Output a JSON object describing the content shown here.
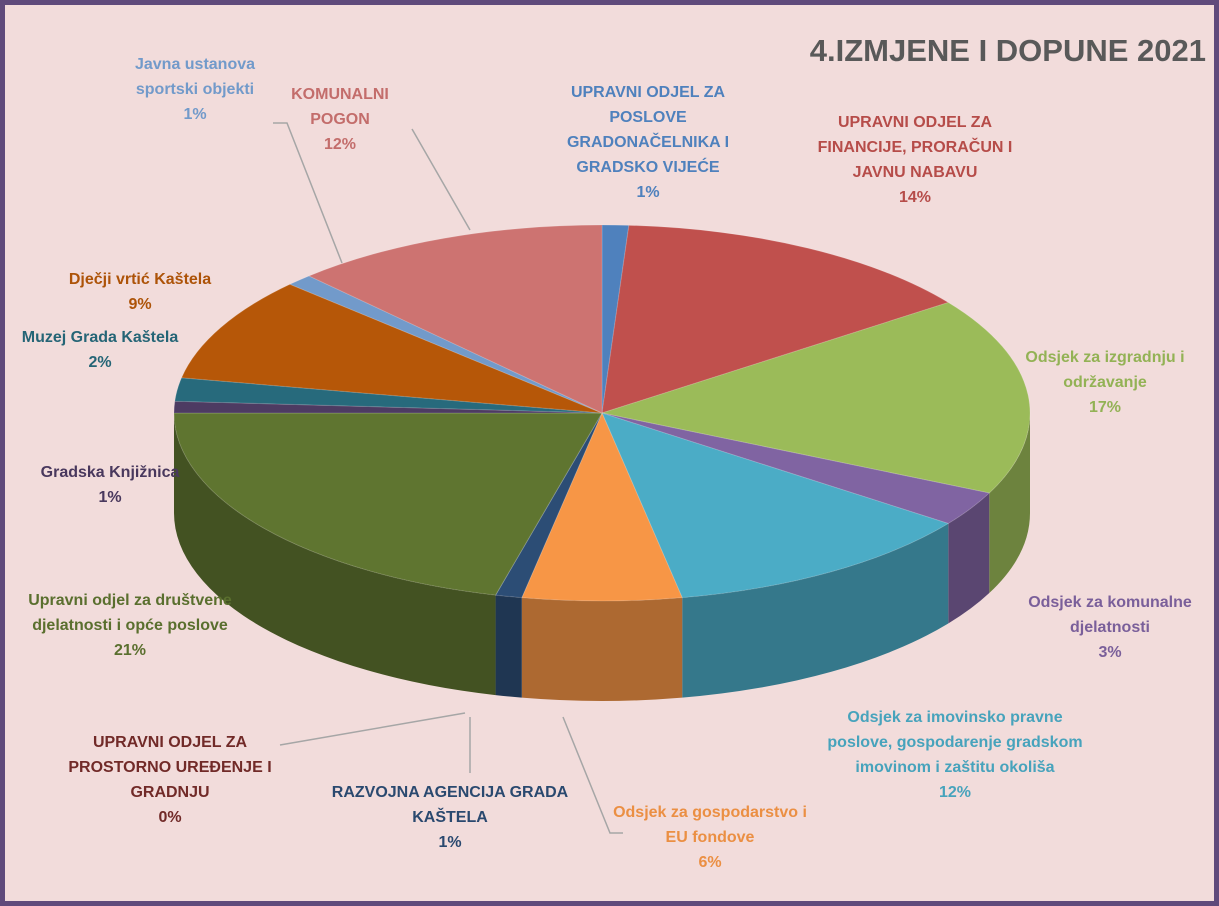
{
  "chart_data": {
    "type": "pie",
    "title": "4.IZMJENE I DOPUNE 2021",
    "categories": [
      "UPRAVNI ODJEL ZA POSLOVE GRADONAČELNIKA I GRADSKO VIJEĆE",
      "UPRAVNI ODJEL ZA FINANCIJE, PRORAČUN I JAVNU NABAVU",
      "Odsjek za izgradnju i održavanje",
      "Odsjek za komunalne djelatnosti",
      "Odsjek za imovinsko pravne poslove, gospodarenje gradskom imovinom i zaštitu okoliša",
      "Odsjek za gospodarstvo i EU fondove",
      "RAZVOJNA AGENCIJA GRADA KAŠTELA",
      "UPRAVNI ODJEL ZA PROSTORNO UREĐENJE I GRADNJU",
      "Upravni odjel za društvene djelatnosti i opće poslove",
      "Gradska Knjižnica",
      "Muzej Grada Kaštela",
      "Dječji vrtić Kaštela",
      "Javna ustanova sportski objekti",
      "KOMUNALNI POGON"
    ],
    "values": [
      1,
      14,
      17,
      3,
      12,
      6,
      1,
      0,
      21,
      1,
      2,
      9,
      1,
      12
    ],
    "value_labels": [
      "1%",
      "14%",
      "17%",
      "3%",
      "12%",
      "6%",
      "1%",
      "0%",
      "21%",
      "1%",
      "2%",
      "9%",
      "1%",
      "12%"
    ],
    "colors": [
      "#4f81bd",
      "#c0504d",
      "#9bbb59",
      "#8064a2",
      "#4bacc6",
      "#f79646",
      "#2c4d75",
      "#772c2a",
      "#5f7530",
      "#4d3b62",
      "#276a7c",
      "#b65708",
      "#729aca",
      "#cd7371"
    ]
  }
}
